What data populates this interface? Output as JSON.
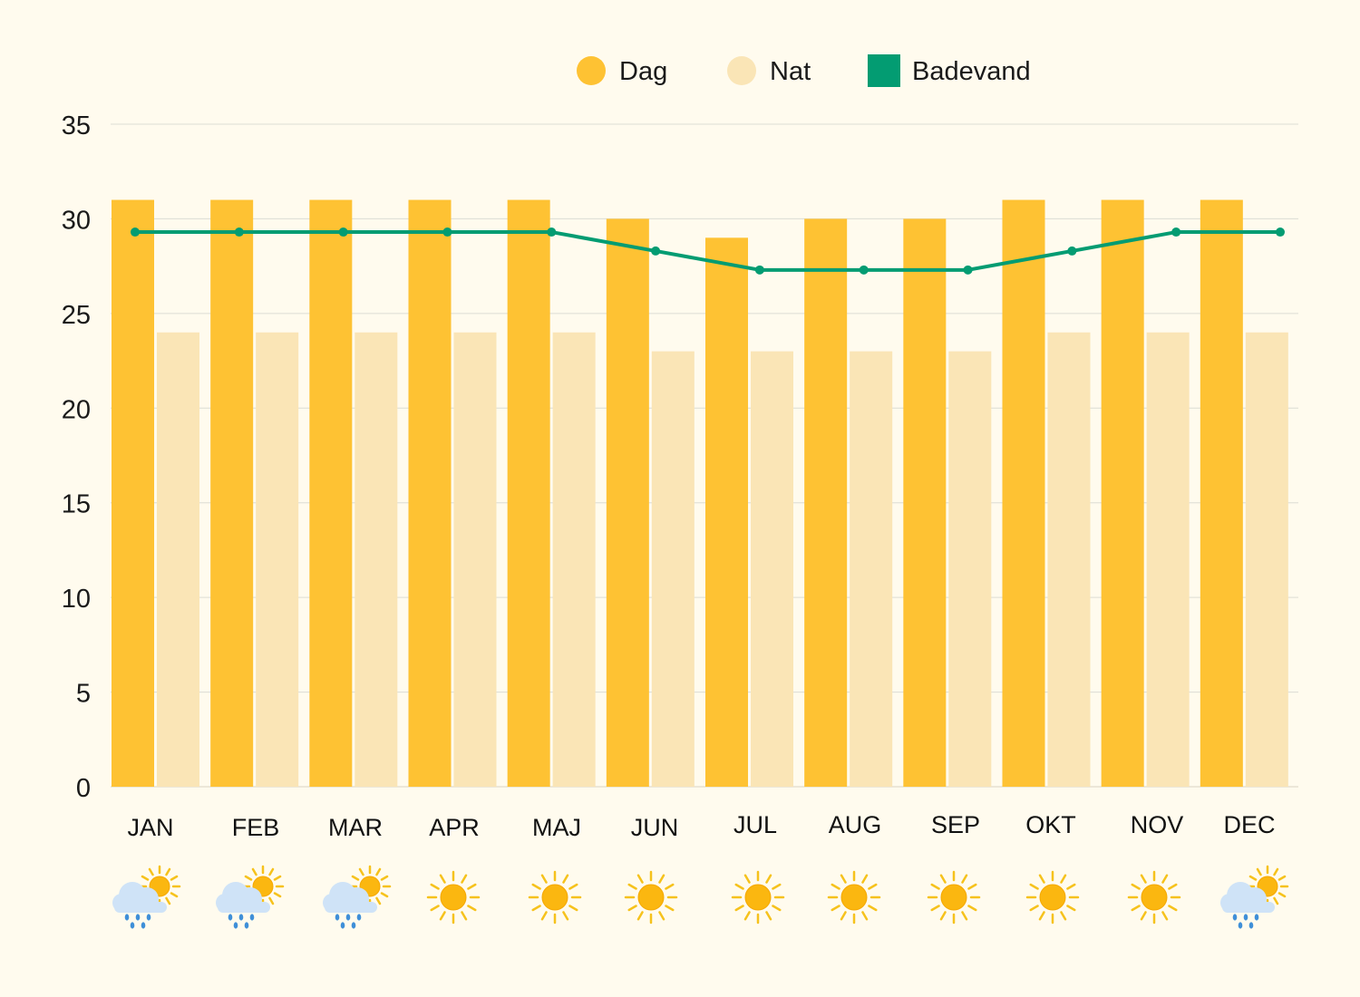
{
  "chart_data": {
    "type": "bar",
    "categories": [
      "JAN",
      "FEB",
      "MAR",
      "APR",
      "MAJ",
      "JUN",
      "JUL",
      "AUG",
      "SEP",
      "OKT",
      "NOV",
      "DEC"
    ],
    "series": [
      {
        "name": "Dag",
        "kind": "bar",
        "color": "#fec233",
        "values": [
          31,
          31,
          31,
          31,
          31,
          30,
          29,
          30,
          30,
          31,
          31,
          31
        ]
      },
      {
        "name": "Nat",
        "kind": "bar",
        "color": "#fae5b6",
        "values": [
          24,
          24,
          24,
          24,
          24,
          23,
          23,
          23,
          23,
          24,
          24,
          24
        ]
      },
      {
        "name": "Badevand",
        "kind": "line",
        "color": "#039c72",
        "values": [
          29.3,
          29.3,
          29.3,
          29.3,
          29.3,
          28.3,
          27.3,
          27.3,
          27.3,
          28.3,
          29.3,
          29.3
        ]
      }
    ],
    "weather_icons": [
      "rain-sun",
      "rain-sun",
      "rain-sun",
      "sun",
      "sun",
      "sun",
      "sun",
      "sun",
      "sun",
      "sun",
      "sun",
      "rain-sun"
    ],
    "ylim": [
      0,
      35
    ],
    "yticks": [
      0,
      5,
      10,
      15,
      20,
      25,
      30,
      35
    ],
    "grid": true,
    "legend_position": "top-right",
    "title": "",
    "xlabel": "",
    "ylabel": ""
  },
  "colors": {
    "background": "#fffbee",
    "grid": "#dcdcd4",
    "sun": "#fbb710",
    "sun_ray": "#f6c21c",
    "cloud": "#cfe3f7",
    "rain": "#3f8fd8"
  }
}
